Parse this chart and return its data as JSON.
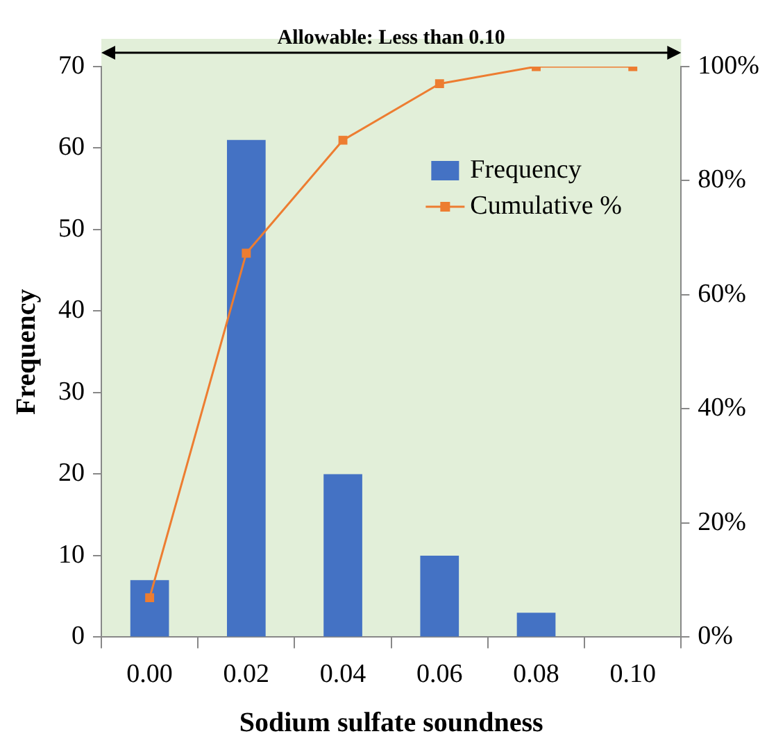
{
  "chart_data": {
    "type": "bar",
    "xlabel": "Sodium sulfate soundness",
    "ylabel": "Frequency",
    "categories": [
      "0.00",
      "0.02",
      "0.04",
      "0.06",
      "0.08",
      "0.10"
    ],
    "series": [
      {
        "name": "Frequency",
        "color": "#4472c4",
        "values": [
          7,
          61,
          20,
          10,
          3,
          0
        ]
      },
      {
        "name": "Cumulative %",
        "type": "line",
        "axis": "y2",
        "color": "#ed7d31",
        "marker": "square",
        "values": [
          6.9,
          67.3,
          87.1,
          97,
          100,
          100
        ]
      }
    ],
    "ylim": [
      0,
      70
    ],
    "yticks": [
      0,
      10,
      20,
      30,
      40,
      50,
      60,
      70
    ],
    "y2lim": [
      0,
      100
    ],
    "y2ticks": [
      {
        "value": 0,
        "label": "0%"
      },
      {
        "value": 20,
        "label": "20%"
      },
      {
        "value": 40,
        "label": "40%"
      },
      {
        "value": 60,
        "label": "60%"
      },
      {
        "value": 80,
        "label": "80%"
      },
      {
        "value": 100,
        "label": "100%"
      }
    ],
    "annotations": [
      "Allowable: Less than 0.10"
    ],
    "grid": false,
    "legend": "top right"
  }
}
